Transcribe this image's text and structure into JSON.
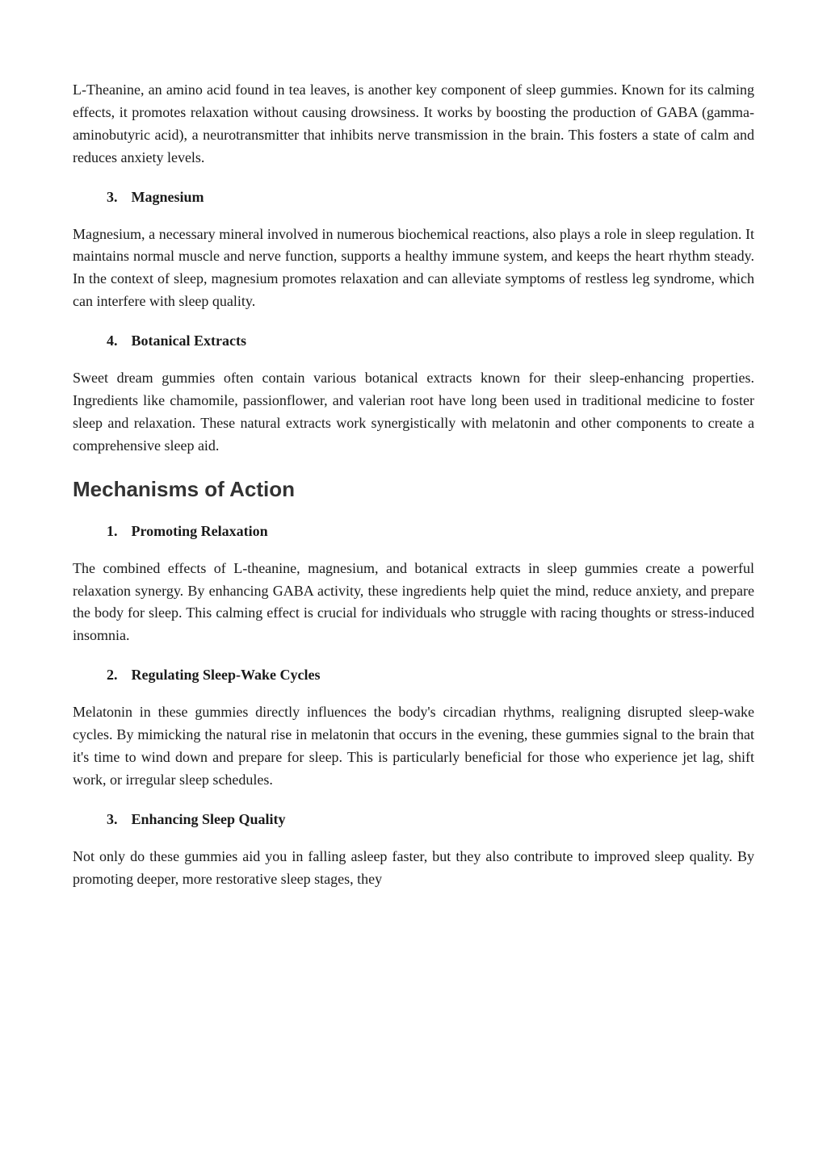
{
  "para_ltheanine": "L-Theanine, an amino acid found in tea leaves, is another key component of sleep gummies. Known for its calming effects, it promotes relaxation without causing drowsiness. It works by boosting the production of GABA (gamma-aminobutyric acid), a neurotransmitter that inhibits nerve transmission in the brain. This fosters a state of calm and reduces anxiety levels.",
  "heading3_num": "3.",
  "heading3_label": "Magnesium",
  "para_magnesium": "Magnesium, a necessary mineral involved in numerous biochemical reactions, also plays a role in sleep regulation. It maintains normal muscle and nerve function, supports a healthy immune system, and keeps the heart rhythm steady. In the context of sleep, magnesium promotes relaxation and can alleviate symptoms of restless leg syndrome, which can interfere with sleep quality.",
  "heading4_num": "4.",
  "heading4_label": "Botanical Extracts",
  "para_botanical": "Sweet dream gummies often contain various botanical extracts known for their sleep-enhancing properties. Ingredients like chamomile, passionflower, and valerian root have long been used in traditional medicine to foster sleep and relaxation. These natural extracts work synergistically with melatonin and other components to create a comprehensive sleep aid.",
  "section_heading": "Mechanisms of Action",
  "m1_num": "1.",
  "m1_label": "Promoting Relaxation",
  "para_m1": "The combined effects of L-theanine, magnesium, and botanical extracts in sleep gummies create a powerful relaxation synergy. By enhancing GABA activity, these ingredients help quiet the mind, reduce anxiety, and prepare the body for sleep. This calming effect is crucial for individuals who struggle with racing thoughts or stress-induced insomnia.",
  "m2_num": "2.",
  "m2_label": "Regulating Sleep-Wake Cycles",
  "para_m2": "Melatonin in these gummies directly influences the body's circadian rhythms, realigning disrupted sleep-wake cycles. By mimicking the natural rise in melatonin that occurs in the evening, these gummies signal to the brain that it's time to wind down and prepare for sleep. This is particularly beneficial for those who experience jet lag, shift work, or irregular sleep schedules.",
  "m3_num": "3.",
  "m3_label": "Enhancing Sleep Quality",
  "para_m3": "Not only do these gummies aid you in falling asleep faster, but they also contribute to improved sleep quality. By promoting deeper, more restorative sleep stages, they"
}
